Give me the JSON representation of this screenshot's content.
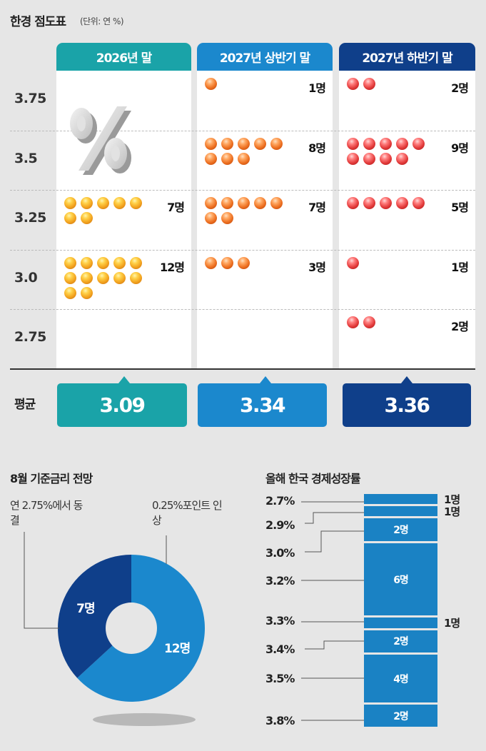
{
  "header": {
    "title": "한경 점도표",
    "unit": "(단위: 연 %)"
  },
  "chart_data": [
    {
      "type": "dot",
      "title": "한경 점도표",
      "unit": "(단위: 연 %)",
      "y_levels": [
        "3.75",
        "3.5",
        "3.25",
        "3.0",
        "2.75"
      ],
      "columns": [
        {
          "label": "2026년 말",
          "color": "#1aa3a8",
          "counts": [
            0,
            0,
            7,
            12,
            0
          ],
          "count_labels": [
            "",
            "",
            "7명",
            "12명",
            ""
          ],
          "average": "3.09",
          "dot": "y"
        },
        {
          "label": "2027년 상반기 말",
          "color": "#1b88cd",
          "counts": [
            1,
            8,
            7,
            3,
            0
          ],
          "count_labels": [
            "1명",
            "8명",
            "7명",
            "3명",
            ""
          ],
          "average": "3.34",
          "dot": "o"
        },
        {
          "label": "2027년 하반기 말",
          "color": "#0f3f8a",
          "counts": [
            2,
            9,
            5,
            1,
            2
          ],
          "count_labels": [
            "2명",
            "9명",
            "5명",
            "1명",
            "2명"
          ],
          "average": "3.36",
          "dot": "r"
        }
      ],
      "average_label": "평균",
      "decor_icon": "percent-icon"
    },
    {
      "type": "pie",
      "title": "8월 기준금리 전망",
      "slices": [
        {
          "label": "연 2.75%에서 동결",
          "value": 7,
          "value_label": "7명",
          "color": "#0f3f8a"
        },
        {
          "label": "0.25%포인트 인상",
          "value": 12,
          "value_label": "12명",
          "color": "#1b88cd"
        }
      ]
    },
    {
      "type": "bar",
      "title": "올해 한국 경제성장률",
      "stacked": true,
      "color": "#1a82c4",
      "categories": [
        "2.7%",
        "2.9%",
        "3.0%",
        "3.2%",
        "3.3%",
        "3.4%",
        "3.5%",
        "3.8%"
      ],
      "values": [
        1,
        1,
        2,
        6,
        1,
        2,
        4,
        2
      ],
      "value_labels": [
        "1명",
        "1명",
        "2명",
        "6명",
        "1명",
        "2명",
        "4명",
        "2명"
      ]
    }
  ]
}
